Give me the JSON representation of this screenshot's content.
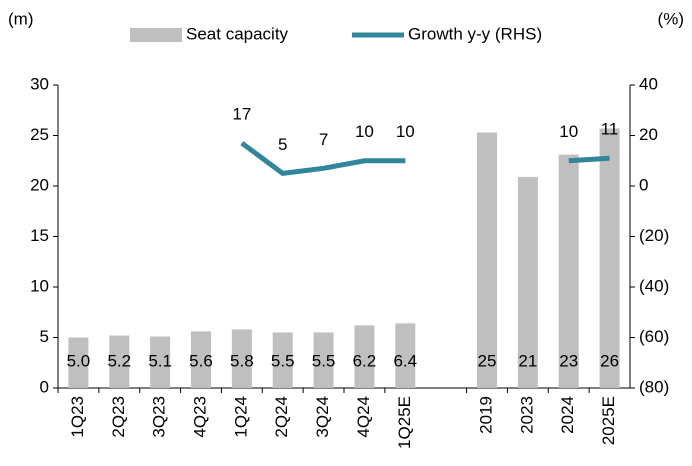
{
  "chart_data": {
    "type": "bar",
    "left_unit": "(m)",
    "right_unit": "(%)",
    "categories": [
      "1Q23",
      "2Q23",
      "3Q23",
      "4Q23",
      "1Q24",
      "2Q24",
      "3Q24",
      "4Q24",
      "1Q25E",
      null,
      "2019",
      "2023",
      "2024",
      "2025E"
    ],
    "series": [
      {
        "name": "Seat capacity",
        "color": "#bfbfbf",
        "values": [
          5.0,
          5.2,
          5.1,
          5.6,
          5.8,
          5.5,
          5.5,
          6.2,
          6.4,
          null,
          25.3,
          20.9,
          23.1,
          25.7
        ],
        "value_labels": [
          "5.0",
          "5.2",
          "5.1",
          "5.6",
          "5.8",
          "5.5",
          "5.5",
          "6.2",
          "6.4",
          null,
          "25",
          "21",
          "23",
          "26"
        ]
      },
      {
        "name": "Growth y-y (RHS)",
        "type": "line",
        "axis": "y2",
        "color": "#31859c",
        "values": [
          null,
          null,
          null,
          null,
          17,
          5,
          7,
          10,
          10,
          null,
          null,
          null,
          10,
          11
        ]
      }
    ],
    "ylim": [
      0,
      30
    ],
    "yticks": [
      0,
      5,
      10,
      15,
      20,
      25,
      30
    ],
    "y2lim": [
      -80,
      40
    ],
    "y2ticks": [
      {
        "value": -80,
        "label": "(80)"
      },
      {
        "value": -60,
        "label": "(60)"
      },
      {
        "value": -40,
        "label": "(40)"
      },
      {
        "value": -20,
        "label": "(20)"
      },
      0,
      20,
      40
    ],
    "legend": "top"
  }
}
